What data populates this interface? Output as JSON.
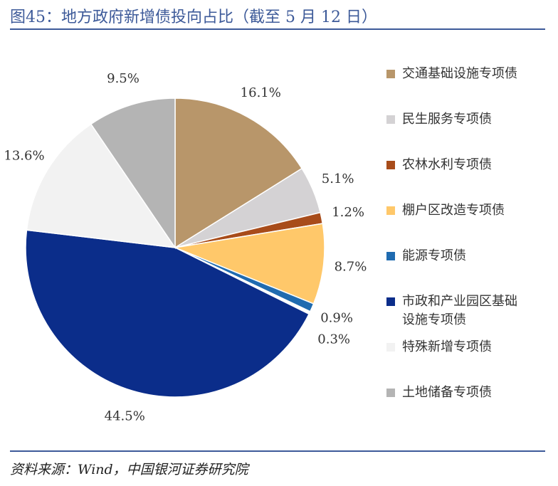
{
  "chart_data": {
    "type": "pie",
    "title": "图45：地方政府新增债投向占比（截至 5 月 12 日）",
    "source": "资料来源：Wind，中国银河证券研究院",
    "categories": [
      "交通基础设施专项债",
      "民生服务专项债",
      "农林水利专项债",
      "棚户区改造专项债",
      "能源专项债",
      null,
      "市政和产业园区基础设施专项债",
      "特殊新增专项债",
      "土地储备专项债"
    ],
    "values": [
      16.1,
      5.1,
      1.2,
      8.7,
      0.9,
      0.3,
      44.5,
      13.6,
      9.5
    ],
    "value_labels": [
      "16.1%",
      "5.1%",
      "1.2%",
      "8.7%",
      "0.9%",
      "0.3%",
      "44.5%",
      "13.6%",
      "9.5%"
    ],
    "colors": [
      "#B8966A",
      "#D4D2D4",
      "#A84C1A",
      "#FFC86A",
      "#1F6BB0",
      "#FFFFFF",
      "#0B2D8A",
      "#F2F2F2",
      "#B4B4B4"
    ]
  }
}
